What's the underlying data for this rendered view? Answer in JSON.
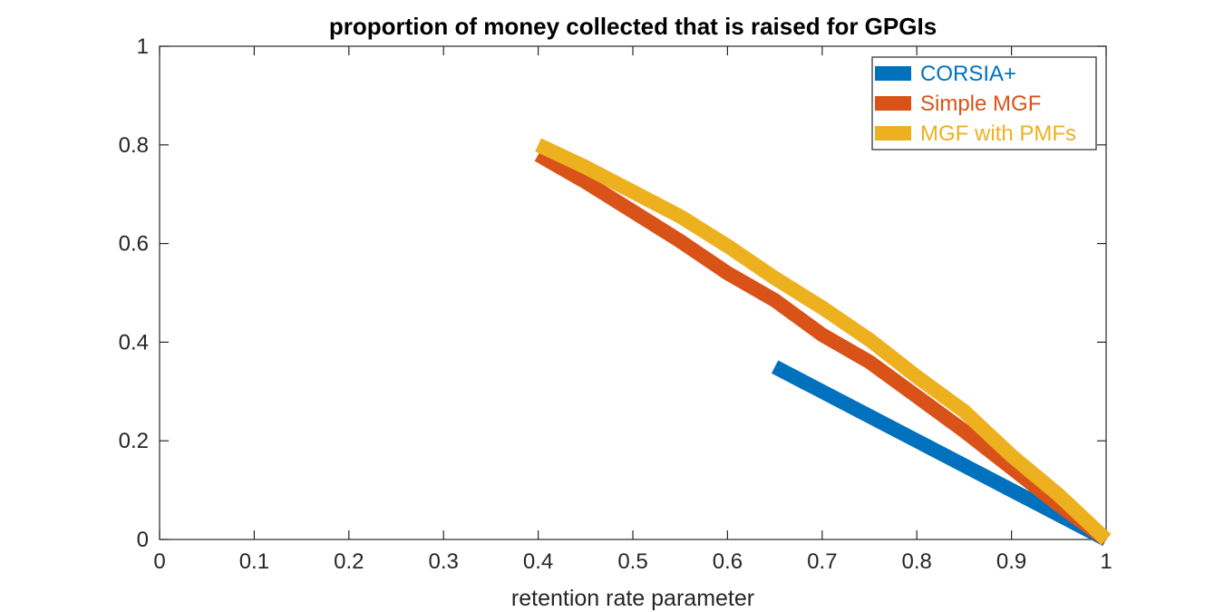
{
  "chart_data": {
    "type": "line",
    "title": "proportion of money collected that is raised for GPGIs",
    "xlabel": "retention rate parameter",
    "ylabel": "",
    "xlim": [
      0,
      1
    ],
    "ylim": [
      0,
      1
    ],
    "x_ticks": [
      "0",
      "0.1",
      "0.2",
      "0.3",
      "0.4",
      "0.5",
      "0.6",
      "0.7",
      "0.8",
      "0.9",
      "1"
    ],
    "y_ticks": [
      "0",
      "0.2",
      "0.4",
      "0.6",
      "0.8",
      "1"
    ],
    "grid": false,
    "legend_position": "top-right",
    "series": [
      {
        "name": "CORSIA+",
        "color": "#0072BD",
        "x": [
          0.65,
          0.7,
          0.75,
          0.8,
          0.85,
          0.9,
          0.95,
          1.0
        ],
        "y": [
          0.35,
          0.3,
          0.25,
          0.2,
          0.15,
          0.1,
          0.05,
          0.0
        ]
      },
      {
        "name": "Simple MGF",
        "color": "#D95319",
        "x": [
          0.4,
          0.45,
          0.5,
          0.55,
          0.6,
          0.65,
          0.7,
          0.75,
          0.8,
          0.85,
          0.9,
          0.95,
          1.0
        ],
        "y": [
          0.78,
          0.725,
          0.665,
          0.605,
          0.54,
          0.485,
          0.415,
          0.36,
          0.29,
          0.22,
          0.145,
          0.07,
          0.0
        ]
      },
      {
        "name": "MGF with PMFs",
        "color": "#EDB120",
        "x": [
          0.4,
          0.45,
          0.5,
          0.55,
          0.6,
          0.65,
          0.7,
          0.75,
          0.8,
          0.85,
          0.9,
          0.95,
          1.0
        ],
        "y": [
          0.8,
          0.755,
          0.705,
          0.655,
          0.595,
          0.53,
          0.47,
          0.405,
          0.33,
          0.26,
          0.17,
          0.09,
          0.0
        ]
      }
    ]
  }
}
